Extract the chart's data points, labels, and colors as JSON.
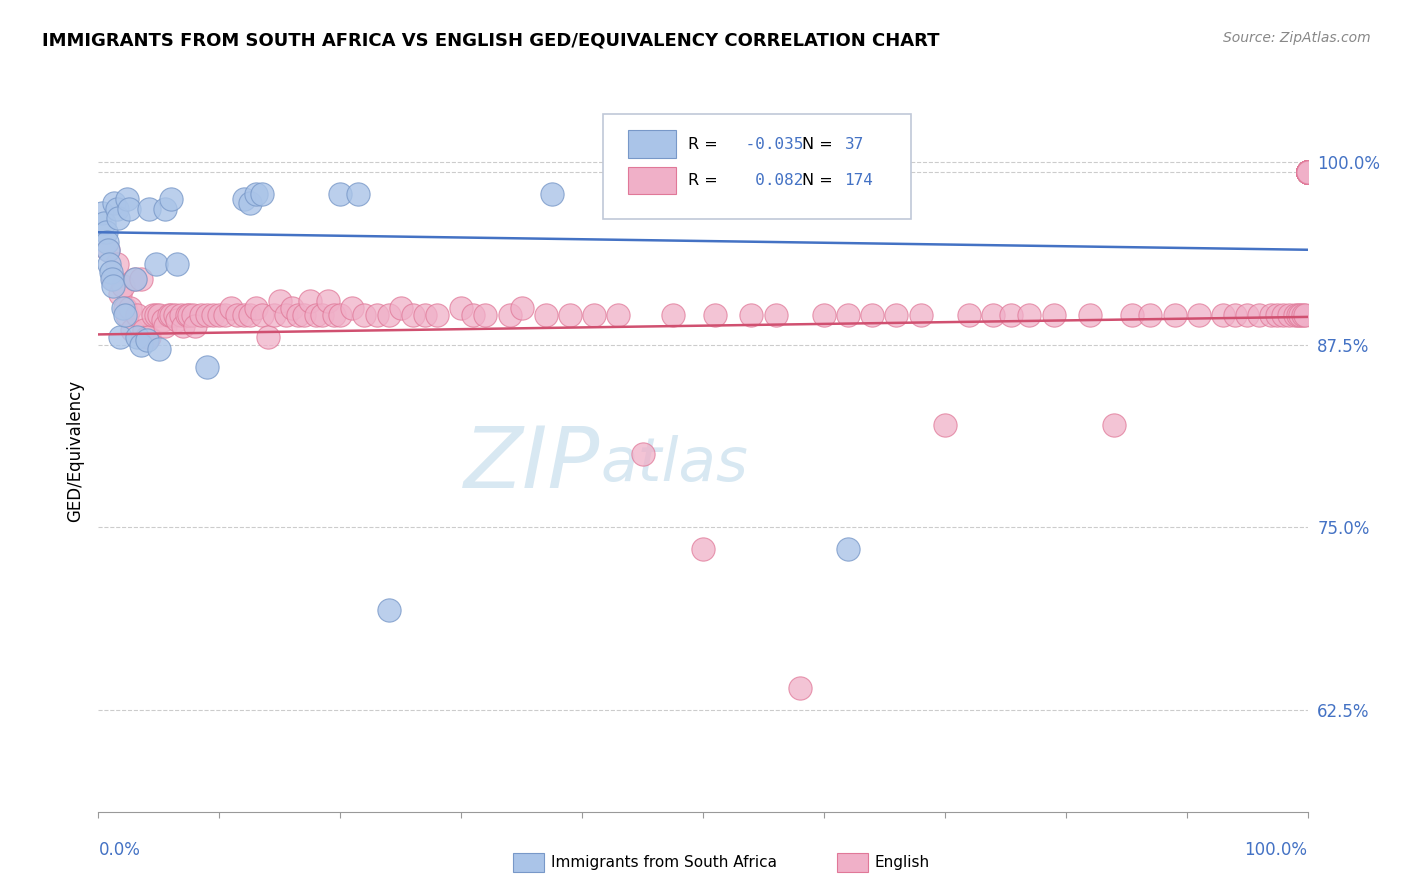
{
  "title": "IMMIGRANTS FROM SOUTH AFRICA VS ENGLISH GED/EQUIVALENCY CORRELATION CHART",
  "source": "Source: ZipAtlas.com",
  "ylabel": "GED/Equivalency",
  "yticks": [
    0.625,
    0.75,
    0.875,
    1.0
  ],
  "ytick_labels": [
    "62.5%",
    "75.0%",
    "87.5%",
    "100.0%"
  ],
  "xlim": [
    0.0,
    1.0
  ],
  "ylim": [
    0.555,
    1.05
  ],
  "blue_R": -0.035,
  "blue_N": 37,
  "pink_R": 0.082,
  "pink_N": 174,
  "blue_color": "#aac4e8",
  "pink_color": "#f0b0c8",
  "blue_edge_color": "#7898c8",
  "pink_edge_color": "#e07898",
  "blue_line_color": "#4472c4",
  "pink_line_color": "#d05070",
  "grid_color": "#cccccc",
  "tick_label_color": "#4472c4",
  "legend_border_color": "#c0c8d8",
  "blue_line_y_start": 0.952,
  "blue_line_y_end": 0.94,
  "pink_line_y_start": 0.882,
  "pink_line_y_end": 0.894,
  "blue_scatter_x": [
    0.003,
    0.005,
    0.006,
    0.007,
    0.008,
    0.009,
    0.01,
    0.011,
    0.012,
    0.013,
    0.015,
    0.016,
    0.018,
    0.02,
    0.022,
    0.024,
    0.025,
    0.03,
    0.032,
    0.035,
    0.04,
    0.042,
    0.048,
    0.05,
    0.055,
    0.06,
    0.065,
    0.09,
    0.12,
    0.125,
    0.13,
    0.135,
    0.2,
    0.215,
    0.24,
    0.375,
    0.62
  ],
  "blue_scatter_y": [
    0.965,
    0.958,
    0.952,
    0.945,
    0.94,
    0.93,
    0.925,
    0.92,
    0.915,
    0.972,
    0.968,
    0.962,
    0.88,
    0.9,
    0.895,
    0.975,
    0.968,
    0.92,
    0.88,
    0.875,
    0.878,
    0.968,
    0.93,
    0.872,
    0.968,
    0.975,
    0.93,
    0.86,
    0.975,
    0.972,
    0.978,
    0.978,
    0.978,
    0.978,
    0.693,
    0.978,
    0.735
  ],
  "pink_scatter_x": [
    0.008,
    0.012,
    0.015,
    0.018,
    0.02,
    0.022,
    0.024,
    0.026,
    0.028,
    0.03,
    0.032,
    0.035,
    0.038,
    0.04,
    0.042,
    0.045,
    0.048,
    0.05,
    0.053,
    0.055,
    0.058,
    0.06,
    0.063,
    0.065,
    0.068,
    0.07,
    0.073,
    0.075,
    0.078,
    0.08,
    0.085,
    0.09,
    0.095,
    0.1,
    0.105,
    0.11,
    0.115,
    0.12,
    0.125,
    0.13,
    0.135,
    0.14,
    0.145,
    0.15,
    0.155,
    0.16,
    0.165,
    0.17,
    0.175,
    0.18,
    0.185,
    0.19,
    0.195,
    0.2,
    0.21,
    0.22,
    0.23,
    0.24,
    0.25,
    0.26,
    0.27,
    0.28,
    0.3,
    0.31,
    0.32,
    0.34,
    0.35,
    0.37,
    0.39,
    0.41,
    0.43,
    0.45,
    0.475,
    0.5,
    0.51,
    0.54,
    0.56,
    0.58,
    0.6,
    0.62,
    0.64,
    0.66,
    0.68,
    0.7,
    0.72,
    0.74,
    0.755,
    0.77,
    0.79,
    0.82,
    0.84,
    0.855,
    0.87,
    0.89,
    0.91,
    0.93,
    0.94,
    0.95,
    0.96,
    0.97,
    0.975,
    0.98,
    0.985,
    0.99,
    0.992,
    0.994,
    0.996,
    0.998,
    1.0,
    1.0,
    1.0,
    1.0,
    1.0,
    1.0,
    1.0,
    1.0,
    1.0,
    1.0,
    1.0,
    1.0,
    1.0,
    1.0,
    1.0,
    1.0,
    1.0,
    1.0,
    1.0,
    1.0,
    1.0,
    1.0,
    1.0,
    1.0,
    1.0,
    1.0,
    1.0,
    1.0,
    1.0,
    1.0,
    1.0,
    1.0,
    1.0,
    1.0,
    1.0,
    1.0,
    1.0,
    1.0,
    1.0,
    1.0,
    1.0,
    1.0,
    1.0,
    1.0,
    1.0,
    1.0,
    1.0,
    1.0,
    1.0,
    1.0,
    1.0,
    1.0,
    1.0,
    1.0,
    1.0,
    1.0,
    1.0,
    1.0,
    1.0,
    1.0
  ],
  "pink_scatter_y": [
    0.94,
    0.92,
    0.93,
    0.91,
    0.915,
    0.9,
    0.895,
    0.9,
    0.885,
    0.92,
    0.895,
    0.92,
    0.885,
    0.88,
    0.88,
    0.895,
    0.895,
    0.895,
    0.892,
    0.888,
    0.895,
    0.895,
    0.895,
    0.892,
    0.895,
    0.888,
    0.895,
    0.895,
    0.895,
    0.888,
    0.895,
    0.895,
    0.895,
    0.895,
    0.895,
    0.9,
    0.895,
    0.895,
    0.895,
    0.9,
    0.895,
    0.88,
    0.895,
    0.905,
    0.895,
    0.9,
    0.895,
    0.895,
    0.905,
    0.895,
    0.895,
    0.905,
    0.895,
    0.895,
    0.9,
    0.895,
    0.895,
    0.895,
    0.9,
    0.895,
    0.895,
    0.895,
    0.9,
    0.895,
    0.895,
    0.895,
    0.9,
    0.895,
    0.895,
    0.895,
    0.895,
    0.8,
    0.895,
    0.735,
    0.895,
    0.895,
    0.895,
    0.64,
    0.895,
    0.895,
    0.895,
    0.895,
    0.895,
    0.82,
    0.895,
    0.895,
    0.895,
    0.895,
    0.895,
    0.895,
    0.82,
    0.895,
    0.895,
    0.895,
    0.895,
    0.895,
    0.895,
    0.895,
    0.895,
    0.895,
    0.895,
    0.895,
    0.895,
    0.895,
    0.895,
    0.895,
    0.895,
    0.895,
    0.993,
    0.993,
    0.993,
    0.993,
    0.993,
    0.993,
    0.993,
    0.993,
    0.993,
    0.993,
    0.993,
    0.993,
    0.993,
    0.993,
    0.993,
    0.993,
    0.993,
    0.993,
    0.993,
    0.993,
    0.993,
    0.993,
    0.993,
    0.993,
    0.993,
    0.993,
    0.993,
    0.993,
    0.993,
    0.993,
    0.993,
    0.993,
    0.993,
    0.993,
    0.993,
    0.993,
    0.993,
    0.993,
    0.993,
    0.993,
    0.993,
    0.993,
    0.993,
    0.993,
    0.993,
    0.993,
    0.993,
    0.993,
    0.993,
    0.993,
    0.993,
    0.993,
    0.993,
    0.993,
    0.993,
    0.993,
    0.993,
    0.993
  ]
}
